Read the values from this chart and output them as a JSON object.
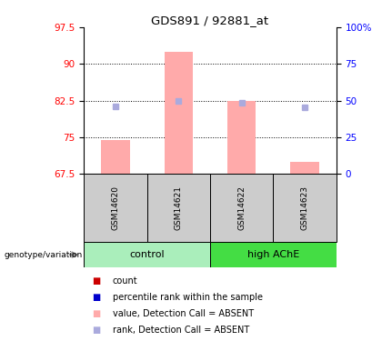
{
  "title": "GDS891 / 92881_at",
  "samples": [
    "GSM14620",
    "GSM14621",
    "GSM14622",
    "GSM14623"
  ],
  "ylim_left": [
    67.5,
    97.5
  ],
  "ylim_right": [
    0,
    100
  ],
  "yticks_left": [
    67.5,
    75.0,
    82.5,
    90.0,
    97.5
  ],
  "ytick_labels_left": [
    "67.5",
    "75",
    "82.5",
    "90",
    "97.5"
  ],
  "yticks_right": [
    0,
    25,
    50,
    75,
    100
  ],
  "ytick_labels_right": [
    "0",
    "25",
    "50",
    "75",
    "100%"
  ],
  "bar_values": [
    74.5,
    92.5,
    82.5,
    70.0
  ],
  "rank_values": [
    81.3,
    82.5,
    82.1,
    81.2
  ],
  "bar_color": "#ffaaaa",
  "rank_color": "#aaaadd",
  "bar_width": 0.45,
  "grid_yticks": [
    90.0,
    82.5,
    75.0
  ],
  "control_color": "#aaeebb",
  "hache_color": "#44dd44",
  "sample_box_color": "#cccccc",
  "legend_items": [
    {
      "label": "count",
      "color": "#cc0000"
    },
    {
      "label": "percentile rank within the sample",
      "color": "#0000cc"
    },
    {
      "label": "value, Detection Call = ABSENT",
      "color": "#ffaaaa"
    },
    {
      "label": "rank, Detection Call = ABSENT",
      "color": "#aaaadd"
    }
  ]
}
